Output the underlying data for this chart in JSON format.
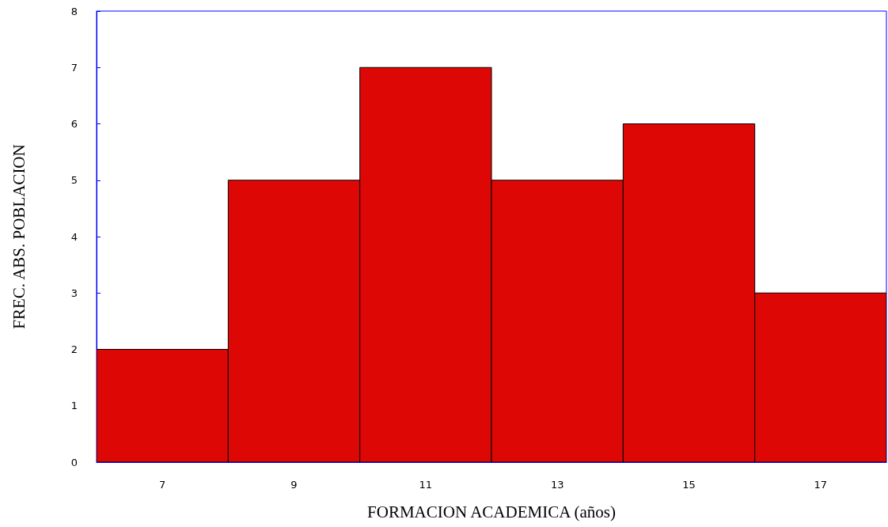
{
  "chart_data": {
    "type": "histogram",
    "xlabel": "FORMACION ACADEMICA (años)",
    "ylabel": "FREC. ABS. POBLACION",
    "bins": [
      6,
      8,
      10,
      12,
      14,
      16,
      18
    ],
    "values": [
      2,
      5,
      7,
      5,
      6,
      3
    ],
    "color": "#dd0806",
    "xlim": [
      6,
      18
    ],
    "xticks": [
      7,
      9,
      11,
      13,
      15,
      17
    ],
    "ylim": [
      0,
      8
    ],
    "yticks": [
      0,
      1,
      2,
      3,
      4,
      5,
      6,
      7,
      8
    ],
    "grid": false
  }
}
